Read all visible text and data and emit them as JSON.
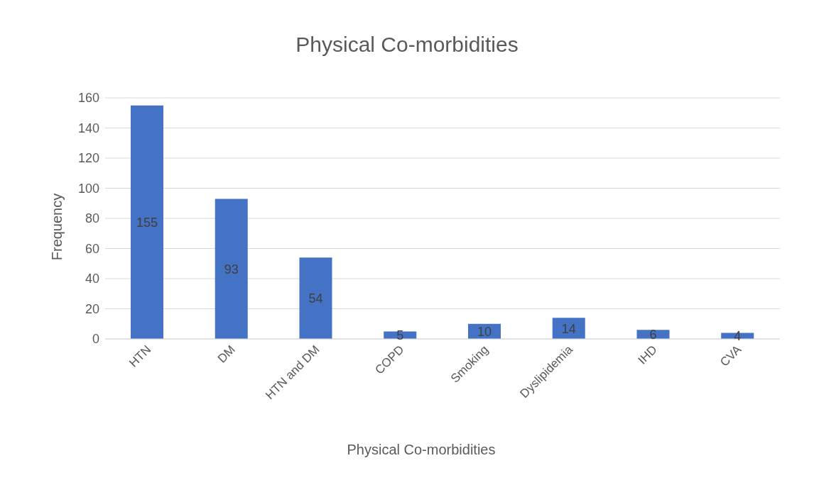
{
  "chart_data": {
    "type": "bar",
    "title": "Physical Co-morbidities",
    "xlabel": "Physical Co-morbidities",
    "ylabel": "Frequency",
    "categories": [
      "HTN",
      "DM",
      "HTN and DM",
      "COPD",
      "Smoking",
      "Dyslipidemia",
      "IHD",
      "CVA"
    ],
    "values": [
      155,
      93,
      54,
      5,
      10,
      14,
      6,
      4
    ],
    "color": "#4472c4",
    "ylim": [
      0,
      160
    ],
    "yticks": [
      0,
      20,
      40,
      60,
      80,
      100,
      120,
      140,
      160
    ],
    "grid": "y",
    "data_labels": true
  }
}
